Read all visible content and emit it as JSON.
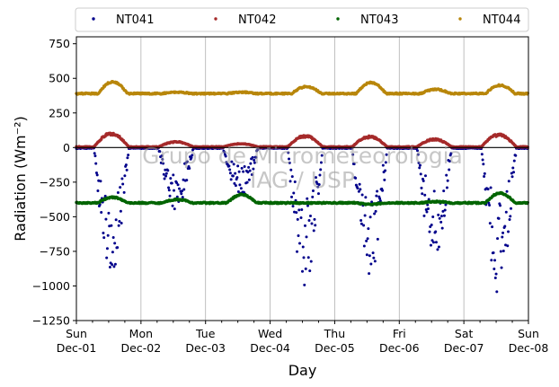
{
  "chart_data": {
    "type": "scatter",
    "xlabel": "Day",
    "ylabel": "Radiation (Wm⁻²)",
    "ylim": [
      -1250,
      800
    ],
    "xlim": [
      "2019-12-01",
      "2019-12-08"
    ],
    "y_ticks": [
      -1250,
      -1000,
      -750,
      -500,
      -250,
      0,
      250,
      500,
      750
    ],
    "y_tick_labels": [
      "−1250",
      "−1000",
      "−750",
      "−500",
      "−250",
      "0",
      "250",
      "500",
      "750"
    ],
    "x_ticks": [
      {
        "day": "Sun",
        "date": "Dec-01"
      },
      {
        "day": "Mon",
        "date": "Dec-02"
      },
      {
        "day": "Tue",
        "date": "Dec-03"
      },
      {
        "day": "Wed",
        "date": "Dec-04"
      },
      {
        "day": "Thu",
        "date": "Dec-05"
      },
      {
        "day": "Fri",
        "date": "Dec-06"
      },
      {
        "day": "Sat",
        "date": "Dec-07"
      },
      {
        "day": "Sun",
        "date": "Dec-08"
      }
    ],
    "grid": "vertical",
    "reference_line_y": 0,
    "legend_position": "top",
    "watermark": [
      "Grupo de Micrometeorologia",
      "IAG / USP"
    ],
    "series": [
      {
        "name": "NT041",
        "color": "#00008b",
        "base": -5,
        "daily_peak": [
          -950,
          -450,
          -380,
          -1010,
          -970,
          -800,
          -1070
        ]
      },
      {
        "name": "NT042",
        "color": "#a52a2a",
        "base": 5,
        "daily_peak": [
          110,
          45,
          30,
          90,
          85,
          65,
          100
        ]
      },
      {
        "name": "NT043",
        "color": "#006400",
        "base": -400,
        "daily_peak": [
          -360,
          -375,
          -340,
          -400,
          -410,
          -390,
          -330
        ]
      },
      {
        "name": "NT044",
        "color": "#b8860b",
        "base": 390,
        "daily_peak": [
          475,
          400,
          400,
          440,
          470,
          420,
          450
        ]
      }
    ]
  }
}
